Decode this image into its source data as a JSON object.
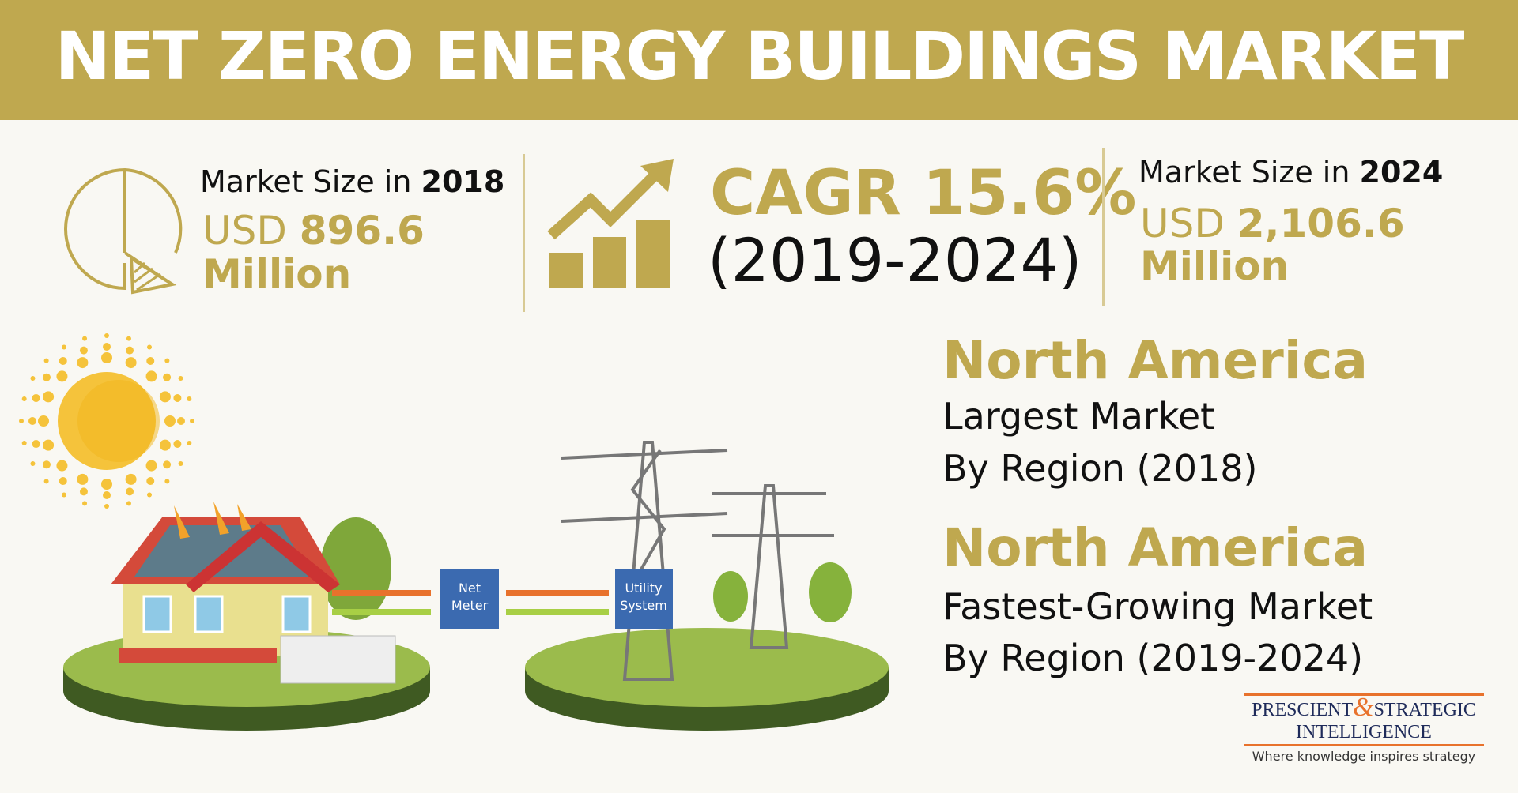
{
  "title": "NET ZERO ENERGY BUILDINGS MARKET",
  "market_2018": {
    "label": "Market Size in ",
    "year": "2018",
    "currency": "USD ",
    "value": "896.6",
    "unit": "Million"
  },
  "cagr": {
    "label": "CAGR 15.6%",
    "period": "(2019-2024)"
  },
  "market_2024": {
    "label": "Market Size in ",
    "year": "2024",
    "currency": "USD ",
    "value": "2,106.6",
    "unit": "Million"
  },
  "illustration": {
    "net_meter": [
      "Net",
      "Meter"
    ],
    "utility": [
      "Utility",
      "System"
    ]
  },
  "regions": [
    {
      "name": "North America",
      "line1": "Largest Market",
      "line2": "By Region (2018)"
    },
    {
      "name": "North America",
      "line1": "Fastest-Growing Market",
      "line2": "By Region (2019-2024)"
    }
  ],
  "logo": {
    "word1": "PRESCIENT",
    "amp": "&",
    "word2": "STRATEGIC",
    "word3": "INTELLIGENCE",
    "tagline": "Where knowledge inspires strategy"
  },
  "colors": {
    "gold": "#bfa84f",
    "orange": "#e8722c",
    "navy": "#1f2b5a",
    "background": "#f9f8f3"
  }
}
